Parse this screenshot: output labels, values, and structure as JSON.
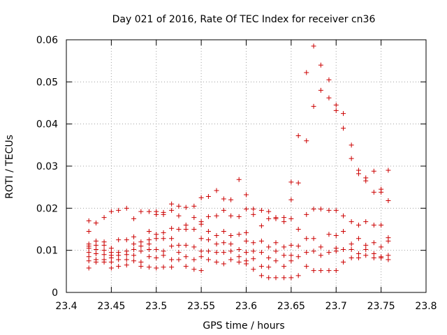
{
  "chart_data": {
    "type": "scatter",
    "title": "Day 021 of 2016, Rate Of TEC Index for receiver cn36",
    "xlabel": "GPS time / hours",
    "ylabel": "ROTI / TECUs",
    "xlim": [
      23.4,
      23.8
    ],
    "ylim": [
      0,
      0.06
    ],
    "xticks": [
      23.4,
      23.45,
      23.5,
      23.55,
      23.6,
      23.65,
      23.7,
      23.75,
      23.8
    ],
    "xtick_labels": [
      "23.4",
      "23.45",
      "23.5",
      "23.55",
      "23.6",
      "23.65",
      "23.7",
      "23.75",
      "23.8"
    ],
    "yticks": [
      0,
      0.01,
      0.02,
      0.03,
      0.04,
      0.05,
      0.06
    ],
    "ytick_labels": [
      "0",
      "0.01",
      "0.02",
      "0.03",
      "0.04",
      "0.05",
      "0.06"
    ],
    "grid": true,
    "marker": "+",
    "marker_color": "#cc0000",
    "series": [
      {
        "name": "ROTI",
        "x": [
          23.425,
          23.425,
          23.425,
          23.425,
          23.425,
          23.425,
          23.425,
          23.425,
          23.425,
          23.433,
          23.433,
          23.433,
          23.433,
          23.433,
          23.433,
          23.433,
          23.442,
          23.442,
          23.442,
          23.442,
          23.442,
          23.442,
          23.442,
          23.45,
          23.45,
          23.45,
          23.45,
          23.45,
          23.45,
          23.45,
          23.458,
          23.458,
          23.458,
          23.458,
          23.458,
          23.458,
          23.467,
          23.467,
          23.467,
          23.467,
          23.467,
          23.467,
          23.475,
          23.475,
          23.475,
          23.475,
          23.475,
          23.475,
          23.483,
          23.483,
          23.483,
          23.483,
          23.483,
          23.483,
          23.492,
          23.492,
          23.492,
          23.492,
          23.492,
          23.492,
          23.492,
          23.5,
          23.5,
          23.5,
          23.5,
          23.5,
          23.5,
          23.5,
          23.508,
          23.508,
          23.508,
          23.508,
          23.508,
          23.508,
          23.508,
          23.517,
          23.517,
          23.517,
          23.517,
          23.517,
          23.517,
          23.517,
          23.525,
          23.525,
          23.525,
          23.525,
          23.525,
          23.525,
          23.533,
          23.533,
          23.533,
          23.533,
          23.533,
          23.533,
          23.542,
          23.542,
          23.542,
          23.542,
          23.542,
          23.542,
          23.55,
          23.55,
          23.55,
          23.55,
          23.55,
          23.55,
          23.55,
          23.558,
          23.558,
          23.558,
          23.558,
          23.558,
          23.558,
          23.567,
          23.567,
          23.567,
          23.567,
          23.567,
          23.567,
          23.575,
          23.575,
          23.575,
          23.575,
          23.575,
          23.575,
          23.583,
          23.583,
          23.583,
          23.583,
          23.583,
          23.583,
          23.592,
          23.592,
          23.592,
          23.592,
          23.592,
          23.592,
          23.6,
          23.6,
          23.6,
          23.6,
          23.6,
          23.6,
          23.6,
          23.608,
          23.608,
          23.608,
          23.608,
          23.608,
          23.608,
          23.617,
          23.617,
          23.617,
          23.617,
          23.617,
          23.617,
          23.625,
          23.625,
          23.625,
          23.625,
          23.625,
          23.625,
          23.633,
          23.633,
          23.633,
          23.633,
          23.633,
          23.633,
          23.642,
          23.642,
          23.642,
          23.642,
          23.642,
          23.642,
          23.65,
          23.65,
          23.65,
          23.65,
          23.65,
          23.65,
          23.65,
          23.658,
          23.658,
          23.658,
          23.658,
          23.658,
          23.658,
          23.667,
          23.667,
          23.667,
          23.667,
          23.667,
          23.667,
          23.675,
          23.675,
          23.675,
          23.675,
          23.675,
          23.675,
          23.683,
          23.683,
          23.683,
          23.683,
          23.683,
          23.683,
          23.692,
          23.692,
          23.692,
          23.692,
          23.692,
          23.692,
          23.7,
          23.7,
          23.7,
          23.7,
          23.7,
          23.7,
          23.7,
          23.708,
          23.708,
          23.708,
          23.708,
          23.708,
          23.708,
          23.717,
          23.717,
          23.717,
          23.717,
          23.717,
          23.717,
          23.725,
          23.725,
          23.725,
          23.725,
          23.725,
          23.725,
          23.733,
          23.733,
          23.733,
          23.733,
          23.733,
          23.733,
          23.742,
          23.742,
          23.742,
          23.742,
          23.742,
          23.742,
          23.75,
          23.75,
          23.75,
          23.75,
          23.75,
          23.75,
          23.758,
          23.758,
          23.758,
          23.758,
          23.758,
          23.758
        ],
        "y": [
          0.017,
          0.0145,
          0.0115,
          0.011,
          0.0105,
          0.0095,
          0.0085,
          0.0075,
          0.0058,
          0.0165,
          0.0122,
          0.0112,
          0.0102,
          0.0092,
          0.0078,
          0.0072,
          0.0178,
          0.012,
          0.0112,
          0.01,
          0.009,
          0.0078,
          0.0072,
          0.0192,
          0.0105,
          0.0095,
          0.0088,
          0.0082,
          0.0072,
          0.0058,
          0.0195,
          0.0125,
          0.0095,
          0.0088,
          0.0078,
          0.0062,
          0.02,
          0.0125,
          0.0098,
          0.009,
          0.0078,
          0.0065,
          0.0175,
          0.0132,
          0.0115,
          0.0102,
          0.0088,
          0.0075,
          0.0192,
          0.012,
          0.011,
          0.0098,
          0.0072,
          0.0062,
          0.0192,
          0.0145,
          0.0125,
          0.0115,
          0.0102,
          0.0085,
          0.006,
          0.0192,
          0.0185,
          0.0138,
          0.0128,
          0.0102,
          0.0082,
          0.0058,
          0.019,
          0.0185,
          0.0142,
          0.0128,
          0.0098,
          0.0088,
          0.006,
          0.021,
          0.0195,
          0.0152,
          0.0128,
          0.011,
          0.0078,
          0.006,
          0.0205,
          0.0182,
          0.015,
          0.0112,
          0.0095,
          0.0078,
          0.0202,
          0.016,
          0.015,
          0.0112,
          0.0085,
          0.0062,
          0.0205,
          0.0178,
          0.015,
          0.0108,
          0.0078,
          0.0055,
          0.0225,
          0.0168,
          0.0162,
          0.0128,
          0.0098,
          0.0085,
          0.0052,
          0.0228,
          0.018,
          0.0145,
          0.0125,
          0.0098,
          0.0078,
          0.0242,
          0.0182,
          0.0135,
          0.0115,
          0.0095,
          0.0072,
          0.0222,
          0.0195,
          0.0145,
          0.0118,
          0.0095,
          0.0068,
          0.022,
          0.0182,
          0.0135,
          0.0115,
          0.0098,
          0.0078,
          0.0268,
          0.018,
          0.0138,
          0.0102,
          0.0085,
          0.0072,
          0.0232,
          0.0198,
          0.0142,
          0.0122,
          0.0095,
          0.0075,
          0.0068,
          0.0198,
          0.0185,
          0.0118,
          0.0098,
          0.008,
          0.0055,
          0.0195,
          0.0158,
          0.0122,
          0.0095,
          0.0062,
          0.004,
          0.0192,
          0.0175,
          0.0108,
          0.0082,
          0.006,
          0.0035,
          0.0178,
          0.0175,
          0.0118,
          0.0098,
          0.0075,
          0.0035,
          0.0178,
          0.0168,
          0.0108,
          0.0088,
          0.0062,
          0.0035,
          0.0262,
          0.022,
          0.0175,
          0.0112,
          0.0088,
          0.0075,
          0.0035,
          0.0372,
          0.026,
          0.015,
          0.011,
          0.0085,
          0.004,
          0.0522,
          0.036,
          0.0185,
          0.0128,
          0.0095,
          0.0062,
          0.0585,
          0.0442,
          0.0198,
          0.0128,
          0.0098,
          0.0052,
          0.054,
          0.048,
          0.0198,
          0.0108,
          0.0088,
          0.0052,
          0.0505,
          0.0462,
          0.0195,
          0.0138,
          0.0095,
          0.0052,
          0.0445,
          0.0432,
          0.0195,
          0.0135,
          0.0105,
          0.0098,
          0.0052,
          0.0425,
          0.039,
          0.0182,
          0.0145,
          0.0102,
          0.0072,
          0.035,
          0.0318,
          0.0168,
          0.0115,
          0.0102,
          0.0082,
          0.029,
          0.0282,
          0.016,
          0.0128,
          0.0092,
          0.0082,
          0.0272,
          0.0265,
          0.0168,
          0.0112,
          0.0102,
          0.0088,
          0.0288,
          0.0238,
          0.016,
          0.0118,
          0.0092,
          0.0082,
          0.0245,
          0.0238,
          0.016,
          0.0108,
          0.0085,
          0.0082,
          0.029,
          0.0218,
          0.013,
          0.0122,
          0.0088,
          0.0078
        ]
      }
    ]
  }
}
